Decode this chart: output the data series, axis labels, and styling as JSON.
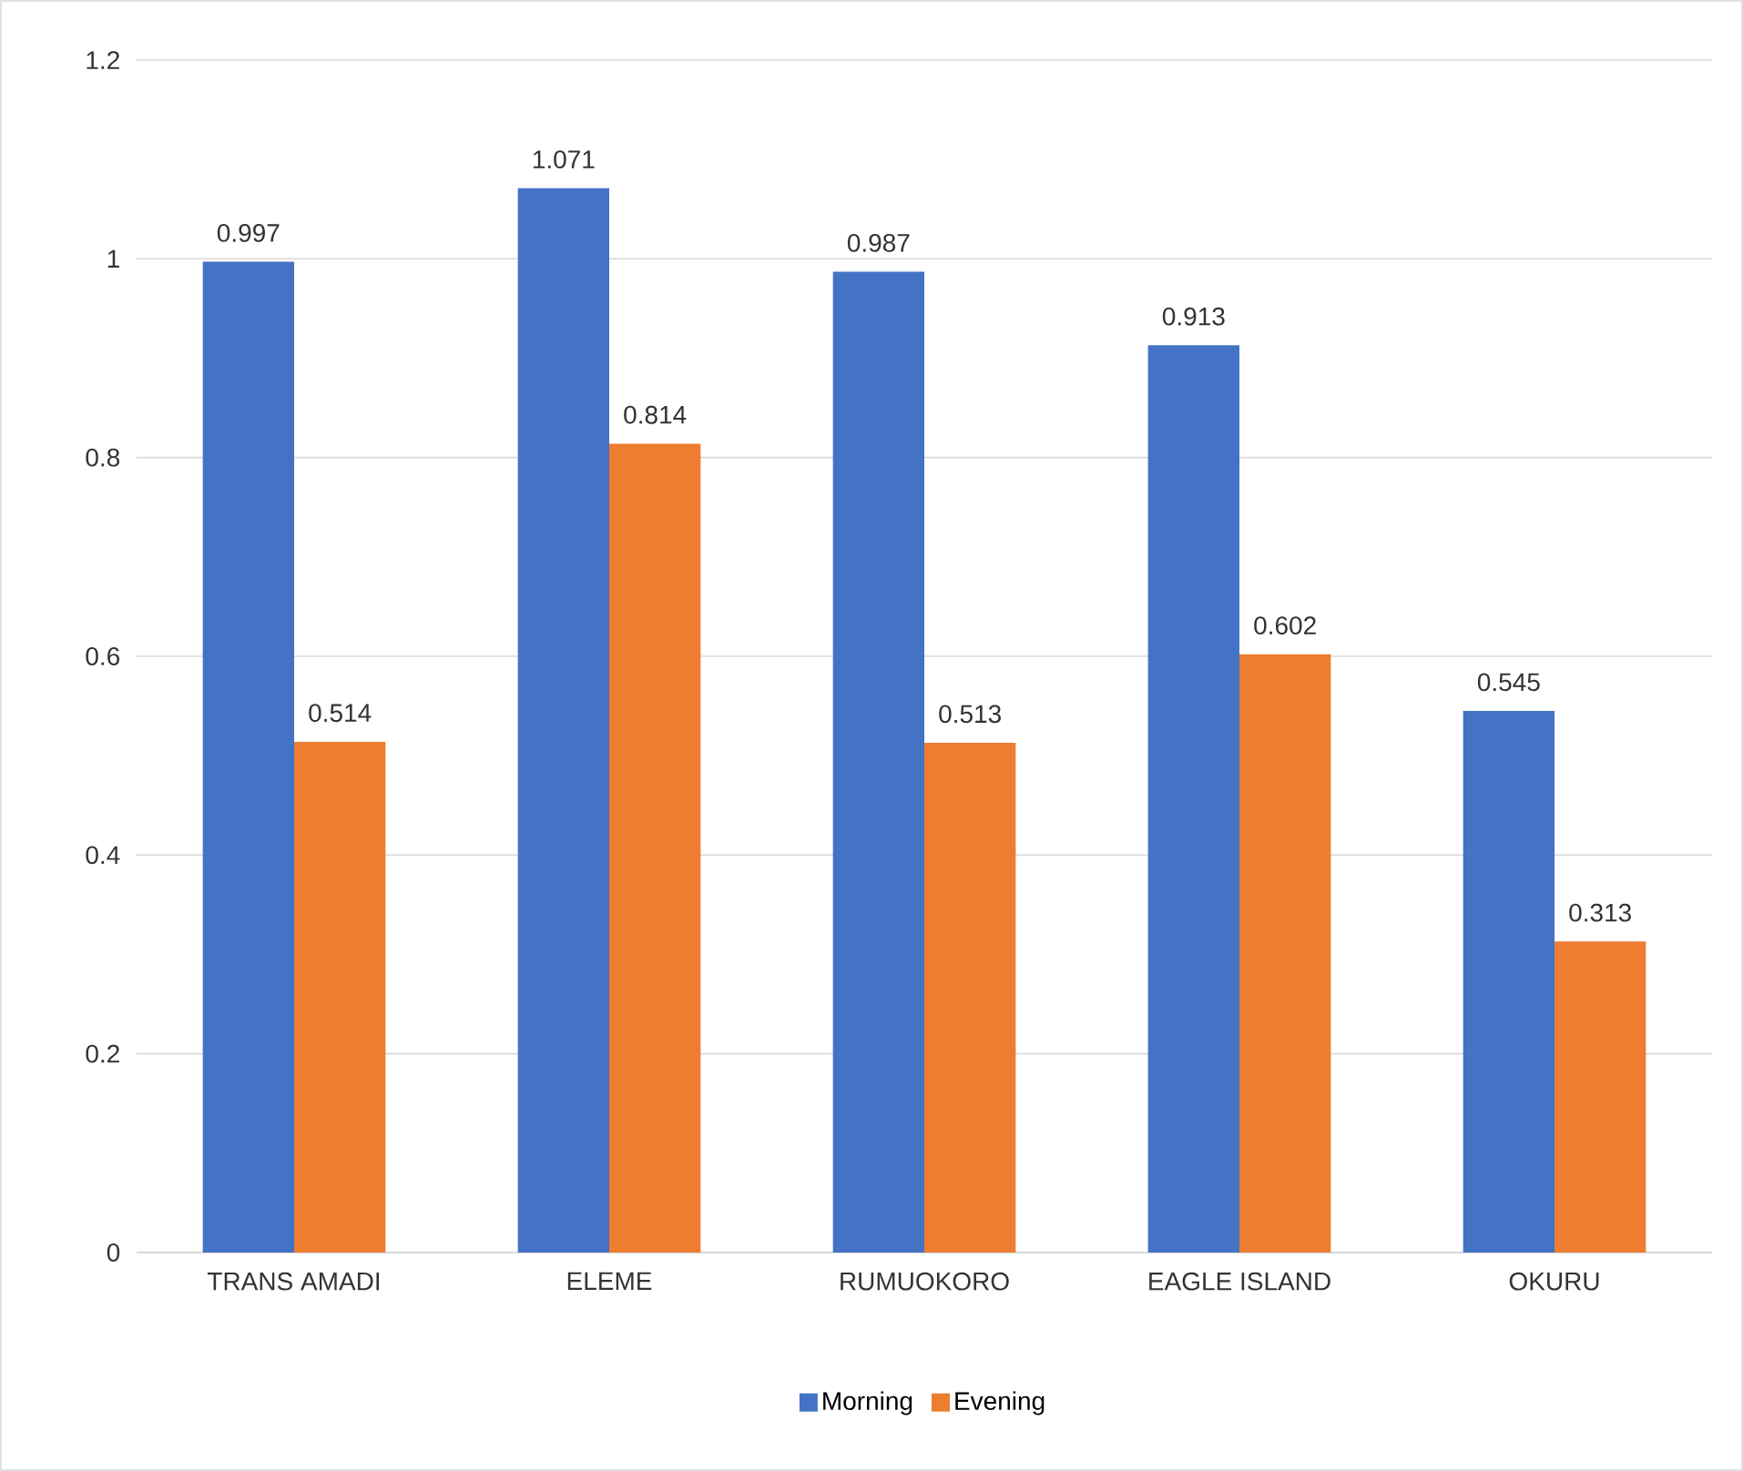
{
  "chart_data": {
    "type": "bar",
    "categories": [
      "TRANS AMADI",
      "ELEME",
      "RUMUOKORO",
      "EAGLE ISLAND",
      "OKURU"
    ],
    "series": [
      {
        "name": "Morning",
        "color": "#4472c4",
        "values": [
          0.997,
          1.071,
          0.987,
          0.913,
          0.545
        ]
      },
      {
        "name": "Evening",
        "color": "#ed7d31",
        "values": [
          0.514,
          0.814,
          0.513,
          0.602,
          0.313
        ]
      }
    ],
    "ylim": [
      0,
      1.2
    ],
    "yticks": [
      0,
      0.2,
      0.4,
      0.6,
      0.8,
      1,
      1.2
    ],
    "grid": "y",
    "legend": "bottom",
    "data_labels": true
  }
}
